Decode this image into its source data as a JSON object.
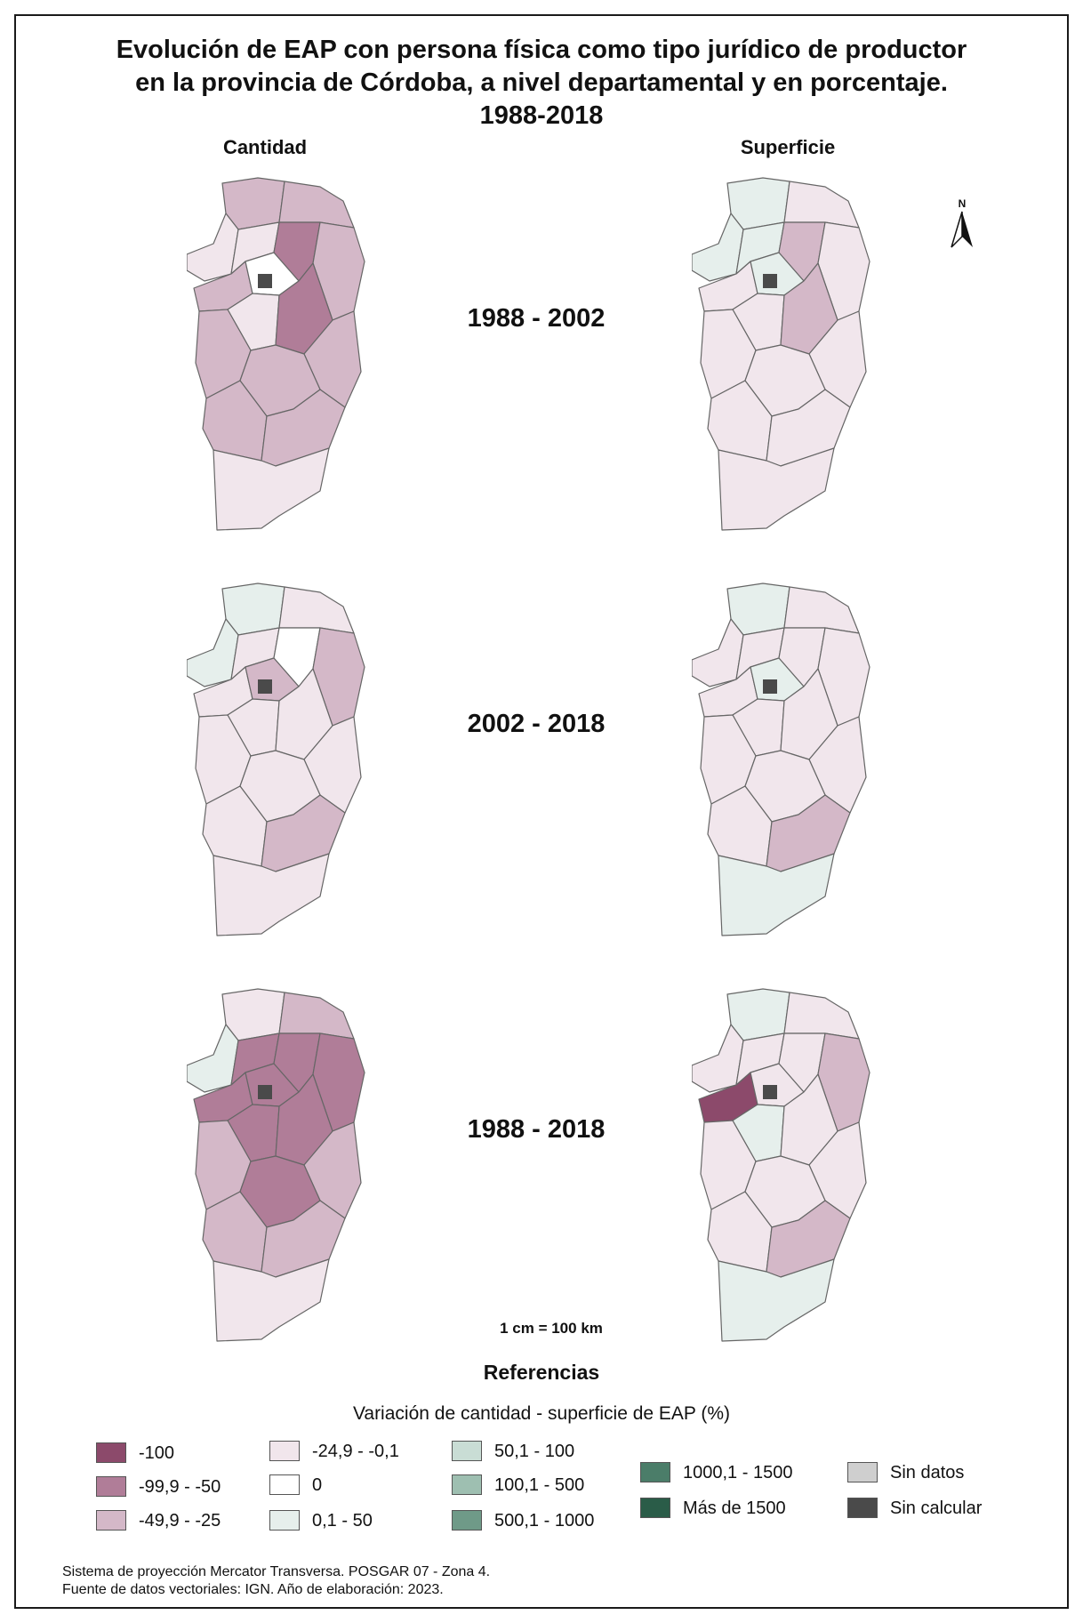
{
  "title": {
    "line1": "Evolución de EAP con persona física como tipo jurídico de productor",
    "line2": "en la provincia de Córdoba, a nivel departamental y en porcentaje.",
    "line3": "1988-2018"
  },
  "columns": {
    "left": "Cantidad",
    "right": "Superficie"
  },
  "periods": [
    "1988 - 2002",
    "2002 - 2018",
    "1988 - 2018"
  ],
  "north_label": "N",
  "scale_label": "1 cm = 100 km",
  "references_title": "Referencias",
  "legend_title": "Variación de cantidad - superficie de EAP (%)",
  "legend": [
    {
      "label": "-100",
      "color": "#8c4a6b"
    },
    {
      "label": "-99,9 - -50",
      "color": "#b07d98"
    },
    {
      "label": "-49,9 - -25",
      "color": "#d4b8c8"
    },
    {
      "label": "-24,9 - -0,1",
      "color": "#f1e6ec"
    },
    {
      "label": "0",
      "color": "#ffffff"
    },
    {
      "label": "0,1 - 50",
      "color": "#e6efec"
    },
    {
      "label": "50,1 - 100",
      "color": "#c9ddd5"
    },
    {
      "label": "100,1 - 500",
      "color": "#9ebfb1"
    },
    {
      "label": "500,1 - 1000",
      "color": "#6f9a88"
    },
    {
      "label": "1000,1 - 1500",
      "color": "#4b7d69"
    },
    {
      "label": "Más de 1500",
      "color": "#2a5c48"
    },
    {
      "label": "Sin datos",
      "color": "#cfcfcf"
    },
    {
      "label": "Sin calcular",
      "color": "#4a4a4a"
    }
  ],
  "footer": {
    "line1": "Sistema de proyección Mercator Transversa. POSGAR 07 - Zona 4.",
    "line2": "Fuente de datos vectoriales: IGN. Año de elaboración: 2023."
  }
}
